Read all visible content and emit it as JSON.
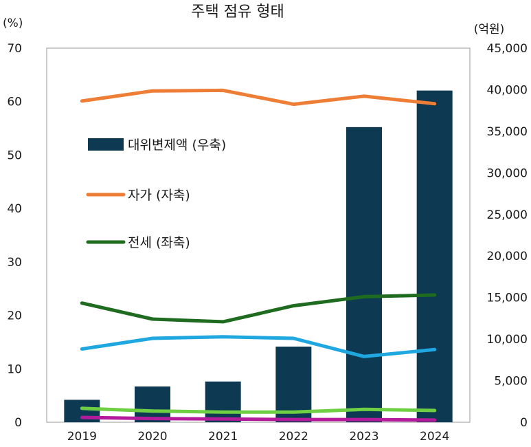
{
  "chart_data": {
    "type": "bar+line",
    "title": "주택 점유 형태",
    "left_axis": {
      "unit_label": "(%)",
      "ylim": [
        0,
        70
      ],
      "ticks": [
        "0",
        "10",
        "20",
        "30",
        "40",
        "50",
        "60",
        "70"
      ]
    },
    "right_axis": {
      "unit_label": "(억원)",
      "ylim": [
        0,
        45000
      ],
      "ticks": [
        "0",
        "5,000",
        "10,000",
        "15,000",
        "20,000",
        "25,000",
        "30,000",
        "35,000",
        "40,000",
        "45,000"
      ]
    },
    "categories": [
      "2019",
      "2020",
      "2021",
      "2022",
      "2023",
      "2024"
    ],
    "bars": {
      "name": "대위변제액 (우축)",
      "axis": "right",
      "color": "#0d3a52",
      "values": [
        2700,
        4300,
        4900,
        9100,
        35500,
        39900
      ]
    },
    "lines": [
      {
        "name": "자가 (자축)",
        "axis": "left",
        "color": "#ee7d35",
        "legend": true,
        "values": [
          60.1,
          62.0,
          62.1,
          59.5,
          61.0,
          59.6
        ]
      },
      {
        "name": "전세 (좌축)",
        "axis": "left",
        "color": "#1f6b20",
        "legend": true,
        "values": [
          22.3,
          19.3,
          18.8,
          21.8,
          23.5,
          23.8
        ]
      },
      {
        "name": "",
        "axis": "left",
        "color": "#1fa7e0",
        "legend": false,
        "values": [
          13.7,
          15.7,
          16.0,
          15.7,
          12.3,
          13.6
        ]
      },
      {
        "name": "",
        "axis": "left",
        "color": "#6ecf42",
        "legend": false,
        "values": [
          2.6,
          2.1,
          1.9,
          1.9,
          2.4,
          2.2
        ]
      },
      {
        "name": "",
        "axis": "left",
        "color": "#b31b9c",
        "legend": false,
        "values": [
          0.9,
          0.7,
          0.6,
          0.5,
          0.5,
          0.4
        ]
      }
    ],
    "legend": [
      {
        "label": "대위변제액 (우축)",
        "kind": "bar",
        "color": "#0d3a52"
      },
      {
        "label": "자가 (자축)",
        "kind": "line",
        "color": "#ee7d35"
      },
      {
        "label": "전세 (좌축)",
        "kind": "line",
        "color": "#1f6b20"
      }
    ],
    "grid": false
  }
}
